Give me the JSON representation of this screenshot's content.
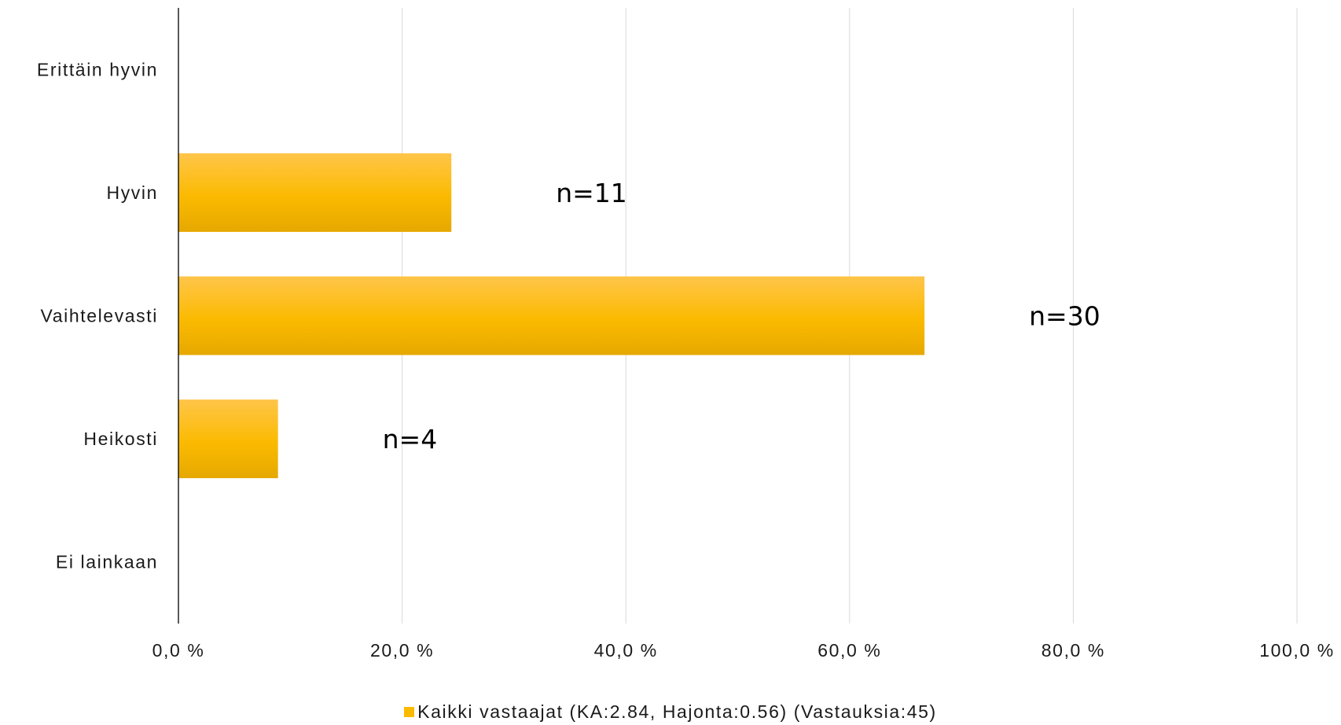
{
  "chart_data": {
    "type": "bar",
    "orientation": "horizontal",
    "categories": [
      "Erittäin hyvin",
      "Hyvin",
      "Vaihtelevasti",
      "Heikosti",
      "Ei lainkaan"
    ],
    "series": [
      {
        "name": "Kaikki vastaajat (KA:2.84, Hajonta:0.56) (Vastauksia:45)",
        "values": [
          0,
          24.4,
          66.7,
          8.9,
          0
        ],
        "data_labels": [
          "",
          "n=11",
          "n=30",
          "n=4",
          ""
        ],
        "color": "#FBBA00"
      }
    ],
    "xlim": [
      0,
      100
    ],
    "xticks": [
      0,
      20,
      40,
      60,
      80,
      100
    ],
    "xtick_labels": [
      "0,0 %",
      "20,0 %",
      "40,0 %",
      "60,0 %",
      "80,0 %",
      "100,0 %"
    ],
    "title": "",
    "xlabel": "",
    "ylabel": "",
    "grid": "vertical",
    "legend_position": "bottom",
    "colors": {
      "bar_top": "#FFC54A",
      "bar_mid": "#FBBA00",
      "bar_bottom": "#E6A800",
      "gridline": "#D9D9D9",
      "axis": "#000000"
    }
  }
}
